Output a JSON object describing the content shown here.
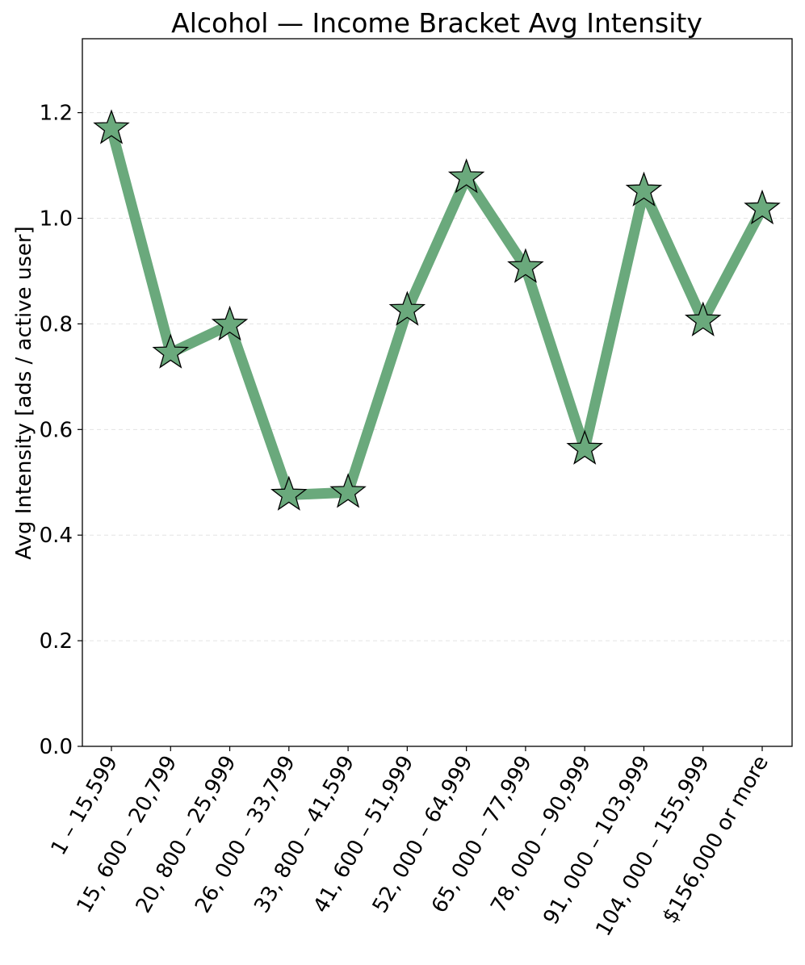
{
  "chart_data": {
    "type": "line",
    "title": "Alcohol — Income Bracket Avg Intensity",
    "xlabel": "",
    "ylabel": "Avg Intensity [ads / active user]",
    "categories": [
      "1 – 15,599",
      "15, 600 – 20,799",
      "20, 800 – 25,999",
      "26, 000 – 33,799",
      "33, 800 – 41,599",
      "41, 600 – 51,999",
      "52, 000 – 64,999",
      "65, 000 – 77,999",
      "78, 000 – 90,999",
      "91, 000 – 103,999",
      "104, 000 – 155,999",
      "$156,000 or more"
    ],
    "series": [
      {
        "values": [
          1.17,
          0.745,
          0.798,
          0.476,
          0.481,
          0.826,
          1.077,
          0.907,
          0.563,
          1.052,
          0.806,
          1.018
        ],
        "color": "#6aa97c",
        "marker": "star"
      }
    ],
    "ylim": [
      0,
      1.34
    ],
    "yticks": [
      "0.0",
      "0.2",
      "0.4",
      "0.6",
      "0.8",
      "1.0",
      "1.2"
    ],
    "grid": "y-dashed",
    "legend": "none"
  }
}
